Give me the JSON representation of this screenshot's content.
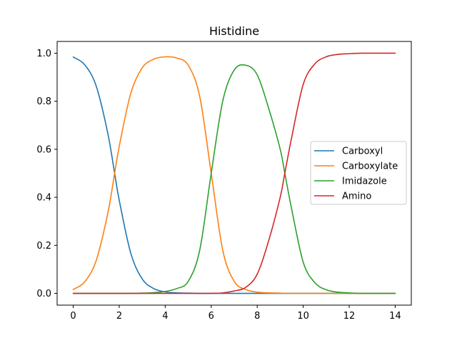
{
  "chart_data": {
    "type": "line",
    "title": "Histidine",
    "xlabel": "",
    "ylabel": "",
    "xlim": [
      -0.7,
      14.7
    ],
    "ylim": [
      -0.049,
      1.049
    ],
    "x_ticks": [
      0,
      2,
      4,
      6,
      8,
      10,
      12,
      14
    ],
    "y_ticks": [
      0.0,
      0.2,
      0.4,
      0.6,
      0.8,
      1.0
    ],
    "x_tick_labels": [
      "0",
      "2",
      "4",
      "6",
      "8",
      "10",
      "12",
      "14"
    ],
    "y_tick_labels": [
      "0.0",
      "0.2",
      "0.4",
      "0.6",
      "0.8",
      "1.0"
    ],
    "grid": false,
    "legend_position": "center-right",
    "x": [
      0,
      0.5,
      1,
      1.5,
      1.8,
      2,
      2.5,
      3,
      3.5,
      4,
      4.5,
      5,
      5.5,
      6,
      6.5,
      7,
      7.5,
      8,
      8.5,
      9,
      9.2,
      9.5,
      10,
      10.5,
      11,
      11.5,
      12,
      12.5,
      13,
      13.5,
      14
    ],
    "series": [
      {
        "name": "Carboxyl",
        "color": "#1f77b4",
        "values": [
          0.984,
          0.952,
          0.863,
          0.668,
          0.5,
          0.388,
          0.168,
          0.06,
          0.02,
          0.006,
          0.002,
          0.001,
          0.0,
          0.0,
          0.0,
          0.0,
          0.0,
          0.0,
          0.0,
          0.0,
          0.0,
          0.0,
          0.0,
          0.0,
          0.0,
          0.0,
          0.0,
          0.0,
          0.0,
          0.0,
          0.0
        ]
      },
      {
        "name": "Carboxylate",
        "color": "#ff7f0e",
        "values": [
          0.016,
          0.048,
          0.137,
          0.332,
          0.5,
          0.612,
          0.832,
          0.939,
          0.975,
          0.985,
          0.98,
          0.95,
          0.82,
          0.5,
          0.18,
          0.05,
          0.016,
          0.005,
          0.002,
          0.001,
          0.0,
          0.0,
          0.0,
          0.0,
          0.0,
          0.0,
          0.0,
          0.0,
          0.0,
          0.0,
          0.0
        ]
      },
      {
        "name": "Imidazole",
        "color": "#2ca02c",
        "values": [
          0.0,
          0.0,
          0.0,
          0.0,
          0.0,
          0.0,
          0.0,
          0.001,
          0.003,
          0.008,
          0.02,
          0.05,
          0.18,
          0.5,
          0.8,
          0.93,
          0.95,
          0.91,
          0.77,
          0.6,
          0.5,
          0.35,
          0.13,
          0.045,
          0.015,
          0.005,
          0.002,
          0.0,
          0.0,
          0.0,
          0.0
        ]
      },
      {
        "name": "Amino",
        "color": "#d62728",
        "values": [
          0.0,
          0.0,
          0.0,
          0.0,
          0.0,
          0.0,
          0.0,
          0.0,
          0.0,
          0.0,
          0.0,
          0.0,
          0.0,
          0.0,
          0.002,
          0.01,
          0.025,
          0.08,
          0.22,
          0.4,
          0.5,
          0.65,
          0.87,
          0.955,
          0.985,
          0.995,
          0.998,
          1.0,
          1.0,
          1.0,
          1.0
        ]
      }
    ]
  }
}
